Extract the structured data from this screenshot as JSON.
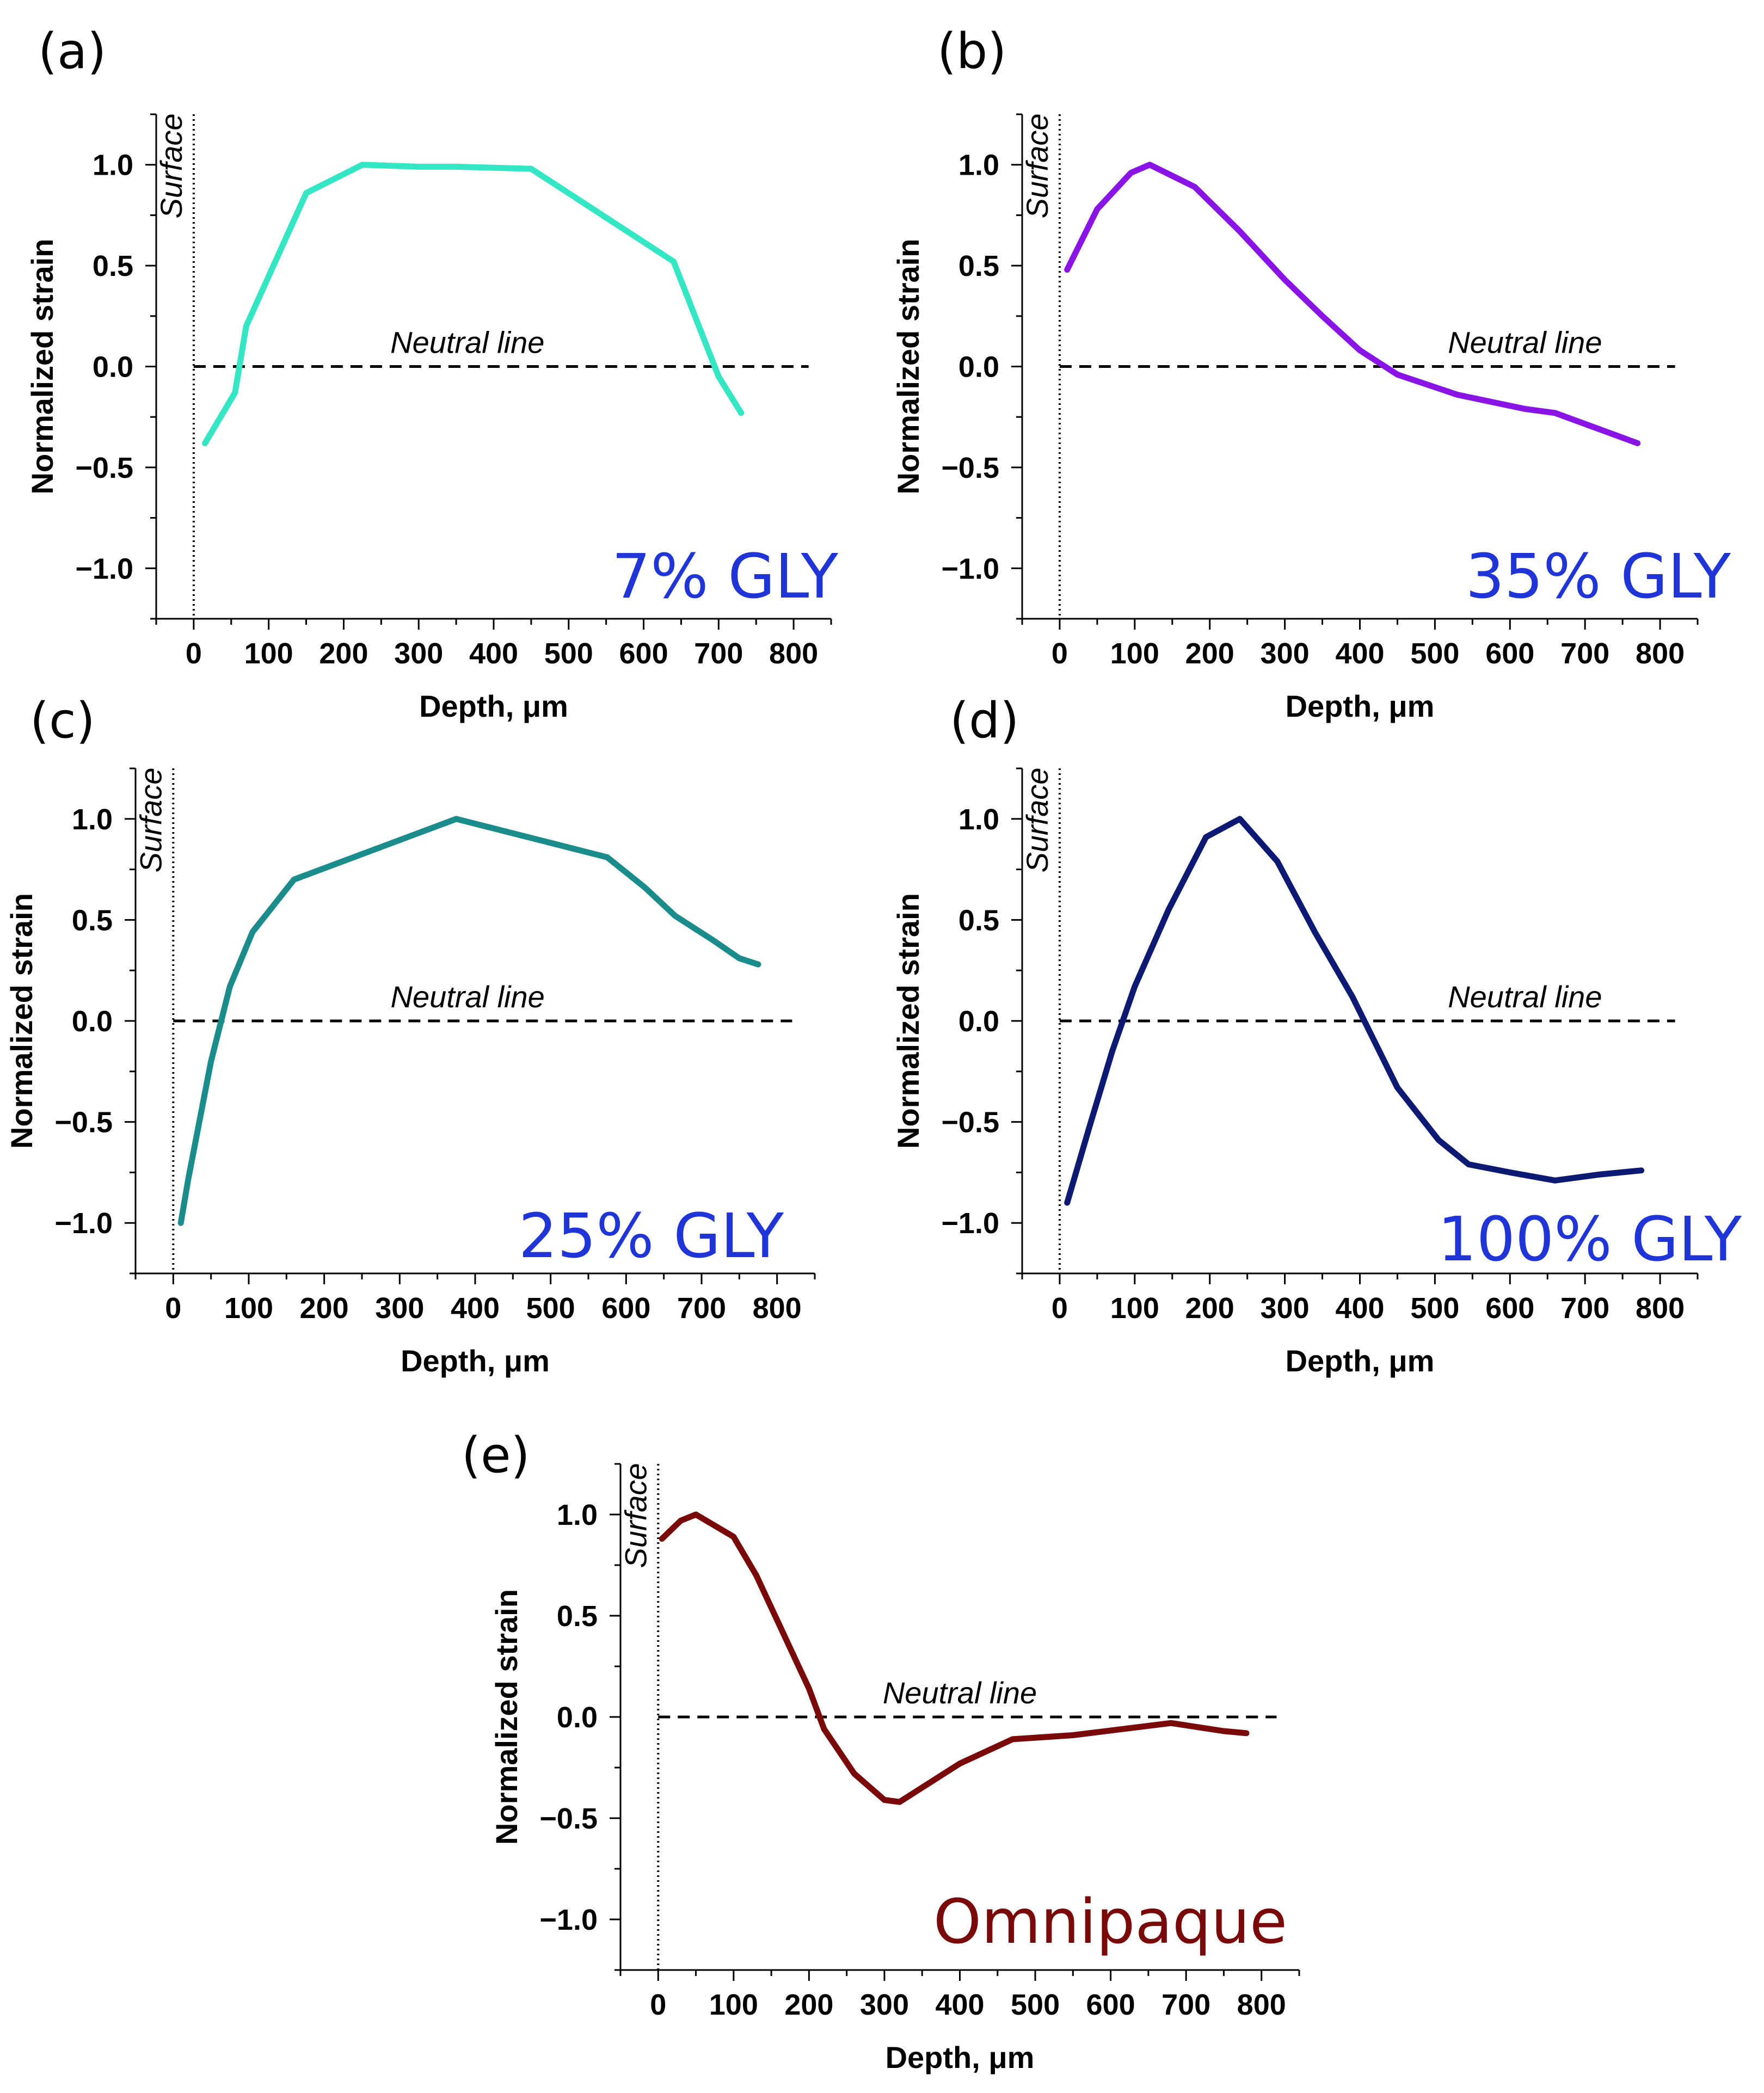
{
  "figure": {
    "panels": [
      "(a)",
      "(b)",
      "(c)",
      "(d)",
      "(e)"
    ]
  },
  "chart_data": [
    {
      "type": "line",
      "panel": "(a)",
      "sample": "7% GLY",
      "color": "#33E6C4",
      "xlabel": "Depth, μm",
      "ylabel": "Normalized strain",
      "xlim": [
        -50,
        850
      ],
      "ylim": [
        -1.25,
        1.25
      ],
      "xticks": [
        0,
        100,
        200,
        300,
        400,
        500,
        600,
        700,
        800
      ],
      "yticks": [
        -1.0,
        -0.5,
        0.0,
        0.5,
        1.0
      ],
      "xtick_labels": [
        "0",
        "100",
        "200",
        "300",
        "400",
        "500",
        "600",
        "700",
        "800"
      ],
      "ytick_labels": [
        "−1.0",
        "−0.5",
        "0.0",
        "0.5",
        "1.0"
      ],
      "surface_label": "Surface",
      "neutral_label": "Neutral line",
      "x": [
        15,
        55,
        70,
        150,
        225,
        300,
        350,
        450,
        640,
        700,
        730
      ],
      "y": [
        -0.38,
        -0.13,
        0.2,
        0.86,
        1.0,
        0.99,
        0.99,
        0.98,
        0.52,
        -0.05,
        -0.23
      ]
    },
    {
      "type": "line",
      "panel": "(b)",
      "sample": "35% GLY",
      "color": "#8A14E6",
      "xlabel": "Depth, μm",
      "ylabel": "Normalized strain",
      "xlim": [
        -50,
        850
      ],
      "ylim": [
        -1.25,
        1.25
      ],
      "xticks": [
        0,
        100,
        200,
        300,
        400,
        500,
        600,
        700,
        800
      ],
      "yticks": [
        -1.0,
        -0.5,
        0.0,
        0.5,
        1.0
      ],
      "xtick_labels": [
        "0",
        "100",
        "200",
        "300",
        "400",
        "500",
        "600",
        "700",
        "800"
      ],
      "ytick_labels": [
        "−1.0",
        "−0.5",
        "0.0",
        "0.5",
        "1.0"
      ],
      "surface_label": "Surface",
      "neutral_label": "Neutral line",
      "x": [
        10,
        50,
        95,
        120,
        180,
        240,
        300,
        350,
        400,
        450,
        530,
        620,
        660,
        770
      ],
      "y": [
        0.48,
        0.78,
        0.96,
        1.0,
        0.89,
        0.67,
        0.43,
        0.25,
        0.08,
        -0.04,
        -0.14,
        -0.21,
        -0.23,
        -0.38
      ]
    },
    {
      "type": "line",
      "panel": "(c)",
      "sample": "25% GLY",
      "color": "#1A8C8C",
      "xlabel": "Depth, μm",
      "ylabel": "Normalized strain",
      "xlim": [
        -50,
        850
      ],
      "ylim": [
        -1.25,
        1.25
      ],
      "xticks": [
        0,
        100,
        200,
        300,
        400,
        500,
        600,
        700,
        800
      ],
      "yticks": [
        -1.0,
        -0.5,
        0.0,
        0.5,
        1.0
      ],
      "xtick_labels": [
        "0",
        "100",
        "200",
        "300",
        "400",
        "500",
        "600",
        "700",
        "800"
      ],
      "ytick_labels": [
        "−1.0",
        "−0.5",
        "0.0",
        "0.5",
        "1.0"
      ],
      "surface_label": "Surface",
      "neutral_label": "Neutral line",
      "x": [
        10,
        20,
        50,
        75,
        105,
        160,
        375,
        575,
        625,
        665,
        715,
        750,
        775
      ],
      "y": [
        -1.0,
        -0.78,
        -0.2,
        0.17,
        0.44,
        0.7,
        1.0,
        0.81,
        0.66,
        0.52,
        0.4,
        0.31,
        0.28
      ]
    },
    {
      "type": "line",
      "panel": "(d)",
      "sample": "100% GLY",
      "color": "#0D1A73",
      "xlabel": "Depth, μm",
      "ylabel": "Normalized strain",
      "xlim": [
        -50,
        850
      ],
      "ylim": [
        -1.25,
        1.25
      ],
      "xticks": [
        0,
        100,
        200,
        300,
        400,
        500,
        600,
        700,
        800
      ],
      "yticks": [
        -1.0,
        -0.5,
        0.0,
        0.5,
        1.0
      ],
      "xtick_labels": [
        "0",
        "100",
        "200",
        "300",
        "400",
        "500",
        "600",
        "700",
        "800"
      ],
      "ytick_labels": [
        "−1.0",
        "−0.5",
        "0.0",
        "0.5",
        "1.0"
      ],
      "surface_label": "Surface",
      "neutral_label": "Neutral line",
      "x": [
        10,
        40,
        70,
        100,
        145,
        195,
        240,
        290,
        340,
        390,
        450,
        505,
        545,
        600,
        660,
        720,
        775
      ],
      "y": [
        -0.9,
        -0.52,
        -0.15,
        0.17,
        0.55,
        0.91,
        1.0,
        0.79,
        0.44,
        0.12,
        -0.33,
        -0.59,
        -0.71,
        -0.75,
        -0.79,
        -0.76,
        -0.74
      ]
    },
    {
      "type": "line",
      "panel": "(e)",
      "sample": "Omnipaque",
      "color": "#7A0A0A",
      "xlabel": "Depth, μm",
      "ylabel": "Normalized strain",
      "xlim": [
        -50,
        850
      ],
      "ylim": [
        -1.25,
        1.25
      ],
      "xticks": [
        0,
        100,
        200,
        300,
        400,
        500,
        600,
        700,
        800
      ],
      "yticks": [
        -1.0,
        -0.5,
        0.0,
        0.5,
        1.0
      ],
      "xtick_labels": [
        "0",
        "100",
        "200",
        "300",
        "400",
        "500",
        "600",
        "700",
        "800"
      ],
      "ytick_labels": [
        "−1.0",
        "−0.5",
        "0.0",
        "0.5",
        "1.0"
      ],
      "surface_label": "Surface",
      "neutral_label": "Neutral line",
      "x": [
        5,
        30,
        50,
        100,
        130,
        170,
        200,
        220,
        260,
        300,
        320,
        400,
        470,
        550,
        680,
        750,
        780
      ],
      "y": [
        0.88,
        0.97,
        1.0,
        0.89,
        0.7,
        0.38,
        0.14,
        -0.06,
        -0.28,
        -0.41,
        -0.42,
        -0.23,
        -0.11,
        -0.09,
        -0.03,
        -0.07,
        -0.08
      ]
    }
  ]
}
